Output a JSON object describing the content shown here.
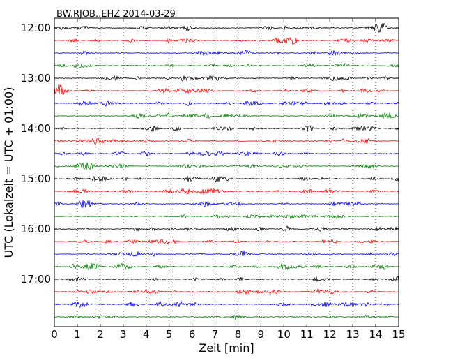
{
  "chart_data": {
    "type": "line",
    "title": "BW.RJOB..EHZ 2014-03-29",
    "xlabel": "Zeit  [min]",
    "ylabel": "UTC (Lokalzeit = UTC + 01:00)",
    "xlim": [
      0,
      15
    ],
    "x_ticks": [
      "0",
      "1",
      "2",
      "3",
      "4",
      "5",
      "6",
      "7",
      "8",
      "9",
      "10",
      "11",
      "12",
      "13",
      "14",
      "15"
    ],
    "y_ticks": [
      "12:00",
      "13:00",
      "14:00",
      "15:00",
      "16:00",
      "17:00"
    ],
    "trace_interval_min": 15,
    "trace_colors": [
      "#000000",
      "#ff0000",
      "#0000ff",
      "#008000"
    ],
    "grid": "vertical dotted",
    "traces": [
      {
        "start": "12:00",
        "color": "#000000"
      },
      {
        "start": "12:15",
        "color": "#ff0000"
      },
      {
        "start": "12:30",
        "color": "#0000ff"
      },
      {
        "start": "12:45",
        "color": "#008000"
      },
      {
        "start": "13:00",
        "color": "#000000"
      },
      {
        "start": "13:15",
        "color": "#ff0000"
      },
      {
        "start": "13:30",
        "color": "#0000ff"
      },
      {
        "start": "13:45",
        "color": "#008000"
      },
      {
        "start": "14:00",
        "color": "#000000"
      },
      {
        "start": "14:15",
        "color": "#ff0000"
      },
      {
        "start": "14:30",
        "color": "#0000ff"
      },
      {
        "start": "14:45",
        "color": "#008000"
      },
      {
        "start": "15:00",
        "color": "#000000"
      },
      {
        "start": "15:15",
        "color": "#ff0000"
      },
      {
        "start": "15:30",
        "color": "#0000ff"
      },
      {
        "start": "15:45",
        "color": "#008000"
      },
      {
        "start": "16:00",
        "color": "#000000"
      },
      {
        "start": "16:15",
        "color": "#ff0000"
      },
      {
        "start": "16:30",
        "color": "#0000ff"
      },
      {
        "start": "16:45",
        "color": "#008000"
      },
      {
        "start": "17:00",
        "color": "#000000"
      },
      {
        "start": "17:15",
        "color": "#ff0000"
      },
      {
        "start": "17:30",
        "color": "#0000ff"
      },
      {
        "start": "17:45",
        "color": "#008000"
      }
    ]
  }
}
